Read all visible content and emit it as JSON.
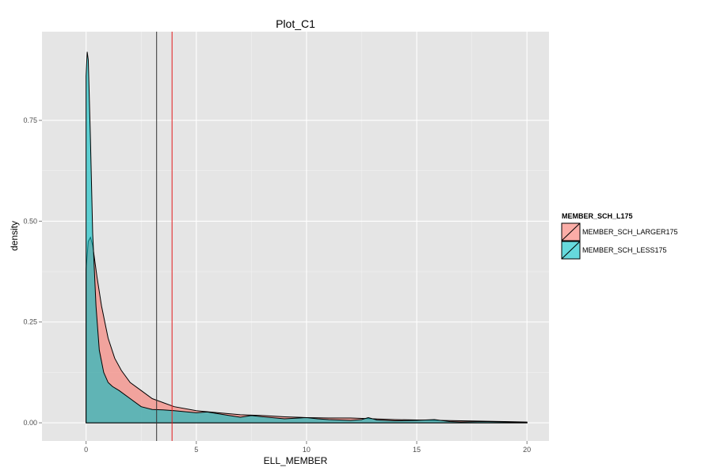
{
  "chart_data": {
    "type": "area",
    "title": "Plot_C1",
    "xlabel": "ELL_MEMBER",
    "ylabel": "density",
    "xlim": [
      -2,
      21
    ],
    "ylim": [
      -0.045,
      0.97
    ],
    "x_ticks": [
      0,
      5,
      10,
      15,
      20
    ],
    "y_ticks": [
      0.0,
      0.25,
      0.5,
      0.75
    ],
    "x_tick_labels": [
      "0",
      "5",
      "10",
      "15",
      "20"
    ],
    "y_tick_labels": [
      "0.00",
      "0.25",
      "0.50",
      "0.75"
    ],
    "grid": true,
    "legend": {
      "title": "MEMBER_SCH_L175",
      "position": "right"
    },
    "vlines": [
      {
        "x": 3.2,
        "color": "#333333"
      },
      {
        "x": 3.9,
        "color": "#e41a1c"
      }
    ],
    "series": [
      {
        "name": "MEMBER_SCH_LARGER175",
        "color": "#F8766D",
        "x": [
          0,
          0.1,
          0.2,
          0.3,
          0.5,
          0.7,
          1.0,
          1.3,
          1.6,
          2.0,
          2.5,
          3.0,
          3.5,
          4.0,
          5.0,
          6.0,
          7.0,
          8.0,
          9.0,
          10.0,
          11.0,
          12.0,
          13.0,
          14.0,
          15.0,
          16.0,
          17.0,
          18.0,
          19.0,
          20.0
        ],
        "y": [
          0.38,
          0.45,
          0.46,
          0.44,
          0.36,
          0.29,
          0.21,
          0.16,
          0.13,
          0.1,
          0.08,
          0.06,
          0.05,
          0.04,
          0.03,
          0.025,
          0.02,
          0.018,
          0.015,
          0.013,
          0.012,
          0.012,
          0.01,
          0.008,
          0.007,
          0.006,
          0.005,
          0.004,
          0.003,
          0.002
        ]
      },
      {
        "name": "MEMBER_SCH_LESS175",
        "color": "#00BFC4",
        "x": [
          0,
          0.05,
          0.1,
          0.2,
          0.3,
          0.45,
          0.6,
          0.8,
          1.0,
          1.2,
          1.5,
          2.0,
          2.5,
          3.0,
          3.5,
          4.0,
          5.0,
          5.5,
          6.5,
          7.0,
          7.5,
          8.0,
          9.0,
          10.0,
          10.5,
          11.0,
          12.0,
          12.5,
          12.8,
          13.2,
          14.0,
          15.0,
          15.8,
          16.5,
          17.0,
          18.0,
          19.0,
          20.0
        ],
        "y": [
          0.86,
          0.92,
          0.9,
          0.7,
          0.47,
          0.29,
          0.18,
          0.125,
          0.1,
          0.09,
          0.08,
          0.06,
          0.04,
          0.033,
          0.032,
          0.03,
          0.025,
          0.027,
          0.018,
          0.014,
          0.018,
          0.015,
          0.01,
          0.013,
          0.01,
          0.008,
          0.006,
          0.008,
          0.013,
          0.007,
          0.005,
          0.006,
          0.008,
          0.003,
          0.002,
          0.003,
          0.002,
          0.001
        ]
      }
    ]
  }
}
